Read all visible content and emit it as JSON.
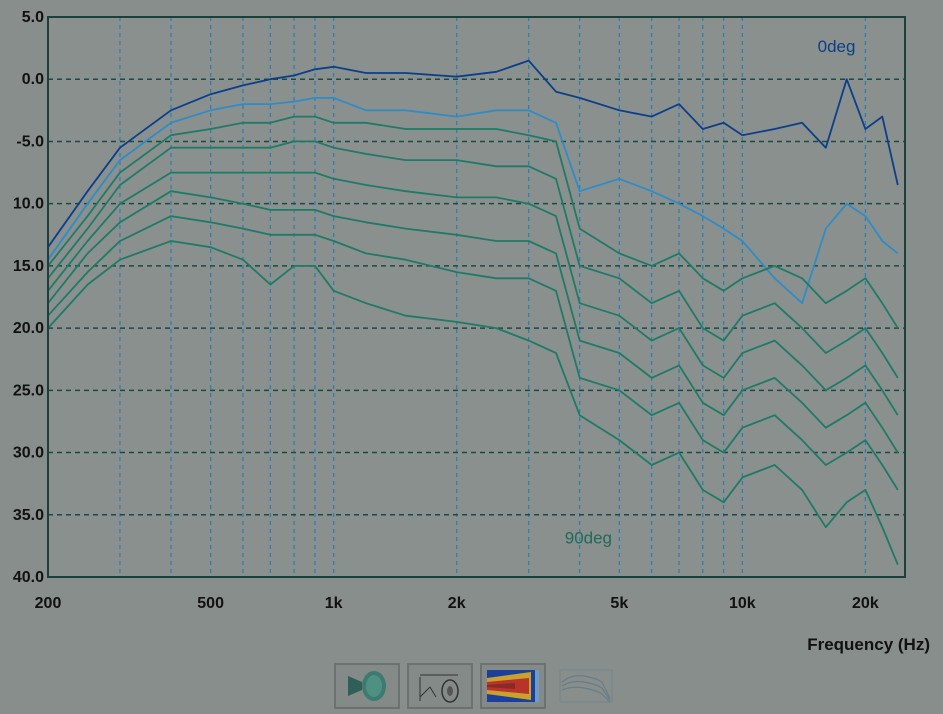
{
  "chart_data": {
    "type": "line",
    "x_scale": "log",
    "xlim": [
      200,
      25000
    ],
    "ylim": [
      -40,
      5
    ],
    "xlabel": "Frequency (Hz)",
    "ylabel": "",
    "x_ticks": [
      {
        "value": 200,
        "label": "200"
      },
      {
        "value": 500,
        "label": "500"
      },
      {
        "value": 1000,
        "label": "1k"
      },
      {
        "value": 2000,
        "label": "2k"
      },
      {
        "value": 5000,
        "label": "5k"
      },
      {
        "value": 10000,
        "label": "10k"
      },
      {
        "value": 20000,
        "label": "20k"
      }
    ],
    "y_ticks": [
      {
        "value": 5,
        "label": "5.0"
      },
      {
        "value": 0,
        "label": "0.0"
      },
      {
        "value": -5,
        "label": "-5.0"
      },
      {
        "value": -10,
        "label": "10.0"
      },
      {
        "value": -15,
        "label": "15.0"
      },
      {
        "value": -20,
        "label": "20.0"
      },
      {
        "value": -25,
        "label": "25.0"
      },
      {
        "value": -30,
        "label": "30.0"
      },
      {
        "value": -35,
        "label": "35.0"
      },
      {
        "value": -40,
        "label": "40.0"
      }
    ],
    "grid": true,
    "annotations": [
      {
        "text": "0deg",
        "x": 17000,
        "y": 2.2,
        "color": "#0b3f8c"
      },
      {
        "text": "90deg",
        "x": 4200,
        "y": -37.3,
        "color": "#1e6b5a"
      }
    ],
    "series": [
      {
        "color": "#0b3f8c",
        "x": [
          200,
          250,
          300,
          400,
          500,
          600,
          700,
          800,
          900,
          1000,
          1200,
          1500,
          2000,
          2500,
          3000,
          3500,
          4000,
          5000,
          6000,
          7000,
          8000,
          9000,
          10000,
          12000,
          14000,
          16000,
          18000,
          20000,
          22000,
          24000
        ],
        "y": [
          -13.5,
          -9,
          -5.5,
          -2.5,
          -1.2,
          -0.5,
          0,
          0.3,
          0.8,
          1,
          0.5,
          0.5,
          0.2,
          0.6,
          1.5,
          -1,
          -1.5,
          -2.5,
          -3,
          -2,
          -4,
          -3.5,
          -4.5,
          -4,
          -3.5,
          -5.5,
          0,
          -4,
          -3,
          -8.5
        ]
      },
      {
        "color": "#2e8cc8",
        "x": [
          200,
          250,
          300,
          400,
          500,
          600,
          700,
          800,
          900,
          1000,
          1200,
          1500,
          2000,
          2500,
          3000,
          3500,
          4000,
          5000,
          6000,
          7000,
          8000,
          9000,
          10000,
          12000,
          14000,
          16000,
          18000,
          20000,
          22000,
          24000
        ],
        "y": [
          -14.5,
          -10,
          -6.5,
          -3.5,
          -2.5,
          -2,
          -2,
          -1.8,
          -1.5,
          -1.5,
          -2.5,
          -2.5,
          -3,
          -2.5,
          -2.5,
          -3.5,
          -9,
          -8,
          -9,
          -10,
          -11,
          -12,
          -13,
          -16,
          -18,
          -12,
          -10,
          -11,
          -13,
          -14
        ]
      },
      {
        "color": "#1f7a66",
        "x": [
          200,
          250,
          300,
          400,
          500,
          600,
          700,
          800,
          900,
          1000,
          1200,
          1500,
          2000,
          2500,
          3000,
          3500,
          4000,
          5000,
          6000,
          7000,
          8000,
          9000,
          10000,
          12000,
          14000,
          16000,
          18000,
          20000,
          22000,
          24000
        ],
        "y": [
          -15,
          -11,
          -7.5,
          -4.5,
          -4,
          -3.5,
          -3.5,
          -3,
          -3,
          -3.5,
          -3.5,
          -4,
          -4,
          -4,
          -4.5,
          -5,
          -12,
          -14,
          -15,
          -14,
          -16,
          -17,
          -16,
          -15,
          -16,
          -18,
          -17,
          -16,
          -18,
          -20
        ]
      },
      {
        "color": "#1f7a66",
        "x": [
          200,
          250,
          300,
          400,
          500,
          600,
          700,
          800,
          900,
          1000,
          1200,
          1500,
          2000,
          2500,
          3000,
          3500,
          4000,
          5000,
          6000,
          7000,
          8000,
          9000,
          10000,
          12000,
          14000,
          16000,
          18000,
          20000,
          22000,
          24000
        ],
        "y": [
          -16,
          -12,
          -8.5,
          -5.5,
          -5.5,
          -5.5,
          -5.5,
          -5,
          -5,
          -5.5,
          -6,
          -6.5,
          -6.5,
          -7,
          -7,
          -8,
          -15,
          -16,
          -18,
          -17,
          -20,
          -21,
          -19,
          -18,
          -20,
          -22,
          -21,
          -20,
          -22,
          -24
        ]
      },
      {
        "color": "#1f7a66",
        "x": [
          200,
          250,
          300,
          400,
          500,
          600,
          700,
          800,
          900,
          1000,
          1200,
          1500,
          2000,
          2500,
          3000,
          3500,
          4000,
          5000,
          6000,
          7000,
          8000,
          9000,
          10000,
          12000,
          14000,
          16000,
          18000,
          20000,
          22000,
          24000
        ],
        "y": [
          -17,
          -13,
          -10,
          -7.5,
          -7.5,
          -7.5,
          -7.5,
          -7.5,
          -7.5,
          -8,
          -8.5,
          -9,
          -9.5,
          -9.5,
          -10,
          -11,
          -18,
          -19,
          -21,
          -20,
          -23,
          -24,
          -22,
          -21,
          -23,
          -25,
          -24,
          -23,
          -25,
          -27
        ]
      },
      {
        "color": "#1f7a66",
        "x": [
          200,
          250,
          300,
          400,
          500,
          600,
          700,
          800,
          900,
          1000,
          1200,
          1500,
          2000,
          2500,
          3000,
          3500,
          4000,
          5000,
          6000,
          7000,
          8000,
          9000,
          10000,
          12000,
          14000,
          16000,
          18000,
          20000,
          22000,
          24000
        ],
        "y": [
          -18,
          -14,
          -11.5,
          -9,
          -9.5,
          -10,
          -10.5,
          -10.5,
          -10.5,
          -11,
          -11.5,
          -12,
          -12.5,
          -13,
          -13,
          -14,
          -21,
          -22,
          -24,
          -23,
          -26,
          -27,
          -25,
          -24,
          -26,
          -28,
          -27,
          -26,
          -28,
          -30
        ]
      },
      {
        "color": "#1f7a66",
        "x": [
          200,
          250,
          300,
          400,
          500,
          600,
          700,
          800,
          900,
          1000,
          1200,
          1500,
          2000,
          2500,
          3000,
          3500,
          4000,
          5000,
          6000,
          7000,
          8000,
          9000,
          10000,
          12000,
          14000,
          16000,
          18000,
          20000,
          22000,
          24000
        ],
        "y": [
          -19,
          -15.5,
          -13,
          -11,
          -11.5,
          -12,
          -12.5,
          -12.5,
          -12.5,
          -13,
          -14,
          -14.5,
          -15.5,
          -16,
          -16,
          -17,
          -24,
          -25,
          -27,
          -26,
          -29,
          -30,
          -28,
          -27,
          -29,
          -31,
          -30,
          -29,
          -31,
          -33
        ]
      },
      {
        "color": "#1f7a66",
        "x": [
          200,
          250,
          300,
          400,
          500,
          600,
          700,
          800,
          900,
          1000,
          1200,
          1500,
          2000,
          2500,
          3000,
          3500,
          4000,
          5000,
          6000,
          7000,
          8000,
          9000,
          10000,
          12000,
          14000,
          16000,
          18000,
          20000,
          22000,
          24000
        ],
        "y": [
          -20,
          -16.5,
          -14.5,
          -13,
          -13.5,
          -14.5,
          -16.5,
          -15,
          -15,
          -17,
          -18,
          -19,
          -19.5,
          -20,
          -21,
          -22,
          -27,
          -29,
          -31,
          -30,
          -33,
          -34,
          -32,
          -31,
          -33,
          -36,
          -34,
          -33,
          -36,
          -39
        ]
      }
    ]
  },
  "toolbar": {
    "buttons": [
      {
        "icon": "horn-driver-icon",
        "disabled": false
      },
      {
        "icon": "measurement-setup-icon",
        "disabled": false
      },
      {
        "icon": "sonogram-icon",
        "disabled": false
      },
      {
        "icon": "response-graph-icon",
        "disabled": true
      }
    ]
  }
}
